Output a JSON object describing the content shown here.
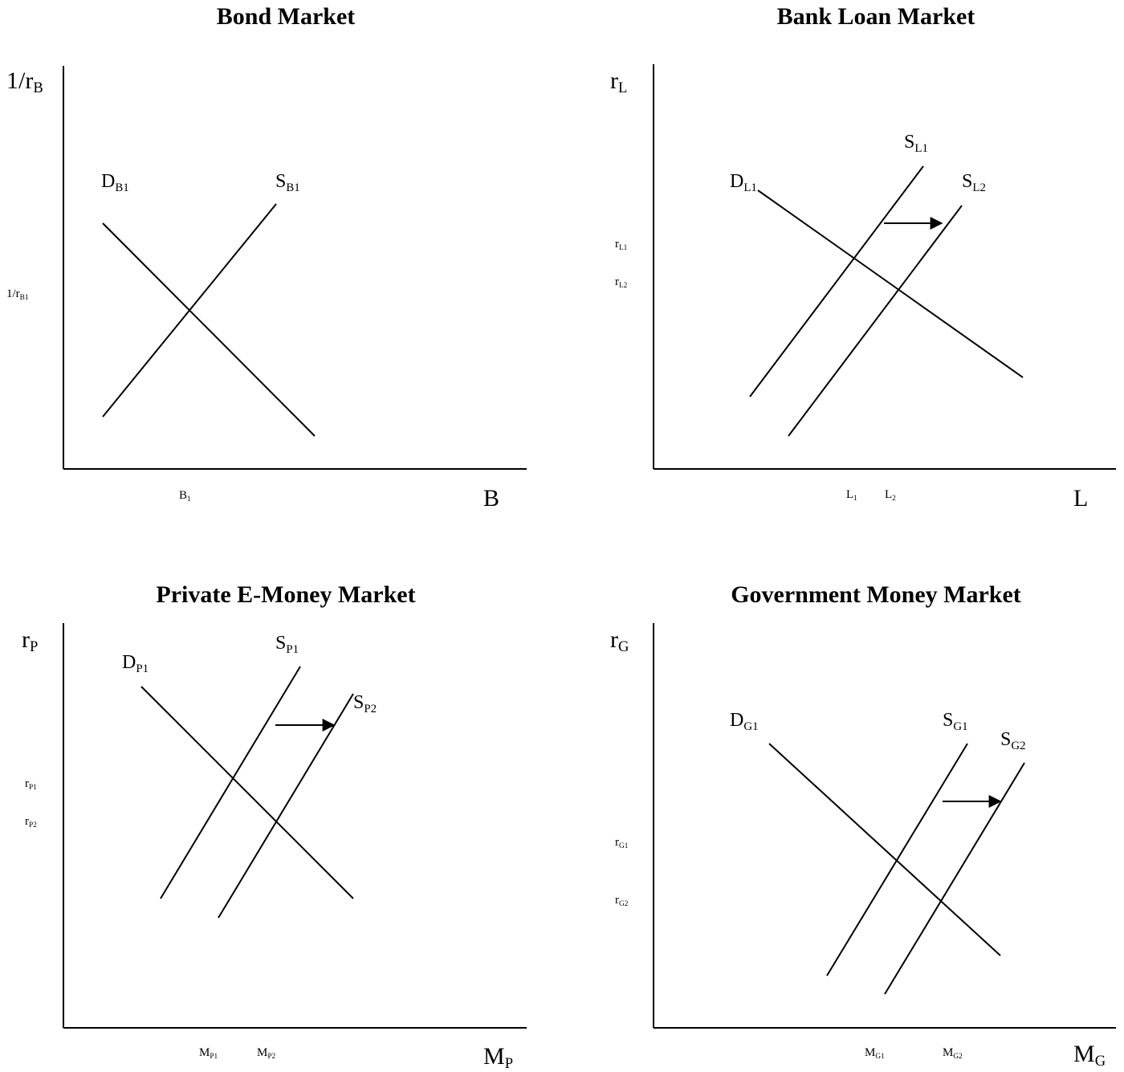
{
  "panels": [
    {
      "id": "bond",
      "title": "Bond Market",
      "y_axis": {
        "base": "1/r",
        "sub": "B"
      },
      "x_axis": {
        "base": "B",
        "sub": ""
      },
      "curves": [
        {
          "base": "D",
          "sub": "B1"
        },
        {
          "base": "S",
          "sub": "B1"
        }
      ],
      "y_ticks": [
        {
          "base": "1/r",
          "sub": "B1"
        }
      ],
      "x_ticks": [
        {
          "base": "B",
          "sub": "1"
        }
      ],
      "shift": false
    },
    {
      "id": "bank-loan",
      "title": "Bank Loan Market",
      "y_axis": {
        "base": "r",
        "sub": "L"
      },
      "x_axis": {
        "base": "L",
        "sub": ""
      },
      "curves": [
        {
          "base": "D",
          "sub": "L1"
        },
        {
          "base": "S",
          "sub": "L1"
        },
        {
          "base": "S",
          "sub": "L2"
        }
      ],
      "y_ticks": [
        {
          "base": "r",
          "sub": "L1"
        },
        {
          "base": "r",
          "sub": "L2"
        }
      ],
      "x_ticks": [
        {
          "base": "L",
          "sub": "1"
        },
        {
          "base": "L",
          "sub": "2"
        }
      ],
      "shift": true
    },
    {
      "id": "private-emoney",
      "title": "Private E-Money Market",
      "y_axis": {
        "base": "r",
        "sub": "P"
      },
      "x_axis": {
        "base": "M",
        "sub": "P"
      },
      "curves": [
        {
          "base": "D",
          "sub": "P1"
        },
        {
          "base": "S",
          "sub": "P1"
        },
        {
          "base": "S",
          "sub": "P2"
        }
      ],
      "y_ticks": [
        {
          "base": "r",
          "sub": "P1"
        },
        {
          "base": "r",
          "sub": "P2"
        }
      ],
      "x_ticks": [
        {
          "base": "M",
          "sub": "P1"
        },
        {
          "base": "M",
          "sub": "P2"
        }
      ],
      "shift": true
    },
    {
      "id": "government-money",
      "title": "Government Money Market",
      "y_axis": {
        "base": "r",
        "sub": "G"
      },
      "x_axis": {
        "base": "M",
        "sub": "G"
      },
      "curves": [
        {
          "base": "D",
          "sub": "G1"
        },
        {
          "base": "S",
          "sub": "G1"
        },
        {
          "base": "S",
          "sub": "G2"
        }
      ],
      "y_ticks": [
        {
          "base": "r",
          "sub": "G1"
        },
        {
          "base": "r",
          "sub": "G2"
        }
      ],
      "x_ticks": [
        {
          "base": "M",
          "sub": "G1"
        },
        {
          "base": "M",
          "sub": "G2"
        }
      ],
      "shift": true
    }
  ]
}
